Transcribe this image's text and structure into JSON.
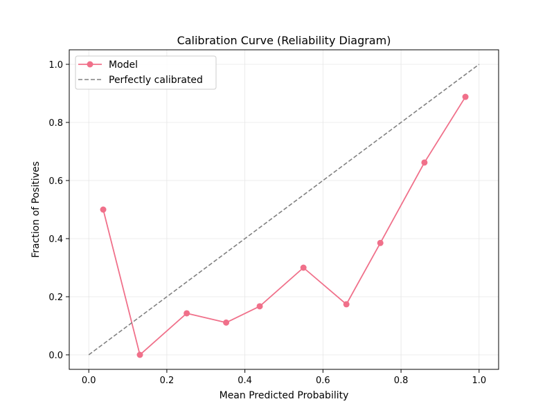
{
  "chart_data": {
    "type": "line",
    "title": "Calibration Curve (Reliability Diagram)",
    "xlabel": "Mean Predicted Probability",
    "ylabel": "Fraction of Positives",
    "xlim": [
      -0.05,
      1.05
    ],
    "ylim": [
      -0.05,
      1.05
    ],
    "xticks": [
      0.0,
      0.2,
      0.4,
      0.6,
      0.8,
      1.0
    ],
    "yticks": [
      0.0,
      0.2,
      0.4,
      0.6,
      0.8,
      1.0
    ],
    "xtick_labels": [
      "0.0",
      "0.2",
      "0.4",
      "0.6",
      "0.8",
      "1.0"
    ],
    "ytick_labels": [
      "0.0",
      "0.2",
      "0.4",
      "0.6",
      "0.8",
      "1.0"
    ],
    "grid": true,
    "legend_position": "top-left",
    "series": [
      {
        "name": "Model",
        "style": "solid-with-circle-markers",
        "color": "#f0708a",
        "x": [
          0.037,
          0.131,
          0.251,
          0.352,
          0.438,
          0.55,
          0.66,
          0.747,
          0.86,
          0.965
        ],
        "y": [
          0.5,
          0.0,
          0.143,
          0.111,
          0.167,
          0.3,
          0.174,
          0.385,
          0.662,
          0.888
        ]
      },
      {
        "name": "Perfectly calibrated",
        "style": "dashed",
        "color": "#808080",
        "x": [
          0.0,
          1.0
        ],
        "y": [
          0.0,
          1.0
        ]
      }
    ]
  }
}
